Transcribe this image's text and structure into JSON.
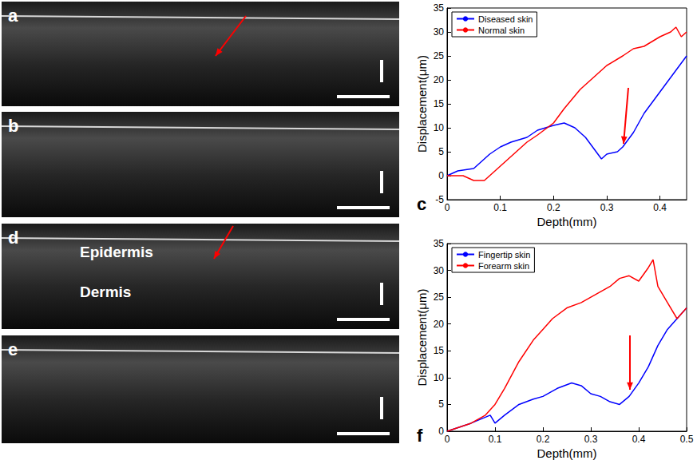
{
  "chart_data": [
    {
      "type": "line",
      "label": "c",
      "x_label": "Depth(mm)",
      "y_label": "Displacement(μm)",
      "xlim": [
        0,
        0.45
      ],
      "xticks": [
        0,
        0.1,
        0.2,
        0.3,
        0.4
      ],
      "ylim": [
        -5,
        35
      ],
      "yticks": [
        -5,
        0,
        5,
        10,
        15,
        20,
        25,
        30,
        35
      ],
      "grid": false,
      "legend": "upper left",
      "series": [
        {
          "name": "Diseased skin",
          "color": "#0000ff",
          "x": [
            0,
            0.02,
            0.05,
            0.06,
            0.08,
            0.1,
            0.12,
            0.15,
            0.17,
            0.2,
            0.22,
            0.24,
            0.26,
            0.28,
            0.29,
            0.3,
            0.32,
            0.33,
            0.35,
            0.37,
            0.39,
            0.41,
            0.43,
            0.45
          ],
          "values": [
            0,
            1,
            1.5,
            2.5,
            4.5,
            6,
            7,
            8,
            9.5,
            10.5,
            11,
            10,
            8,
            5,
            3.5,
            4.5,
            5,
            6,
            9,
            13,
            16,
            19,
            22,
            25
          ]
        },
        {
          "name": "Normal skin",
          "color": "#ff0000",
          "x": [
            0,
            0.03,
            0.05,
            0.07,
            0.09,
            0.11,
            0.13,
            0.15,
            0.17,
            0.2,
            0.22,
            0.25,
            0.28,
            0.3,
            0.33,
            0.35,
            0.37,
            0.4,
            0.42,
            0.43,
            0.44,
            0.45
          ],
          "values": [
            0,
            0,
            -1,
            -1,
            1,
            3,
            5,
            7,
            8.5,
            11,
            14,
            18,
            21,
            23,
            25,
            26.5,
            27,
            29,
            30,
            31,
            29,
            30
          ]
        }
      ]
    },
    {
      "type": "line",
      "label": "f",
      "x_label": "Depth(mm)",
      "y_label": "Displacement(μm)",
      "xlim": [
        0,
        0.5
      ],
      "xticks": [
        0,
        0.1,
        0.2,
        0.3,
        0.4,
        0.5
      ],
      "ylim": [
        0,
        35
      ],
      "yticks": [
        0,
        5,
        10,
        15,
        20,
        25,
        30,
        35
      ],
      "grid": false,
      "legend": "upper left",
      "series": [
        {
          "name": "Fingertip skin",
          "color": "#0000ff",
          "x": [
            0,
            0.05,
            0.09,
            0.1,
            0.12,
            0.15,
            0.18,
            0.2,
            0.23,
            0.26,
            0.28,
            0.3,
            0.32,
            0.34,
            0.36,
            0.38,
            0.4,
            0.42,
            0.44,
            0.46,
            0.48,
            0.5
          ],
          "values": [
            0,
            1.5,
            3,
            1.5,
            3,
            5,
            6,
            6.5,
            8,
            9,
            8.5,
            7,
            6.5,
            5.5,
            5,
            6.5,
            9,
            12,
            16,
            19,
            21,
            23
          ]
        },
        {
          "name": "Forearm skin",
          "color": "#ff0000",
          "x": [
            0,
            0.05,
            0.08,
            0.1,
            0.12,
            0.15,
            0.18,
            0.2,
            0.22,
            0.25,
            0.28,
            0.3,
            0.32,
            0.34,
            0.36,
            0.38,
            0.4,
            0.42,
            0.43,
            0.44,
            0.46,
            0.48,
            0.5
          ],
          "values": [
            0,
            1.5,
            3,
            5,
            8,
            13,
            17,
            19,
            21,
            23,
            24,
            25,
            26,
            27,
            28.5,
            29,
            28,
            30.5,
            32,
            27,
            24,
            21,
            23
          ]
        }
      ]
    }
  ],
  "images": [
    {
      "label": "a"
    },
    {
      "label": "b"
    },
    {
      "label": "d",
      "texts": [
        "Epidermis",
        "Dermis"
      ]
    },
    {
      "label": "e"
    }
  ]
}
